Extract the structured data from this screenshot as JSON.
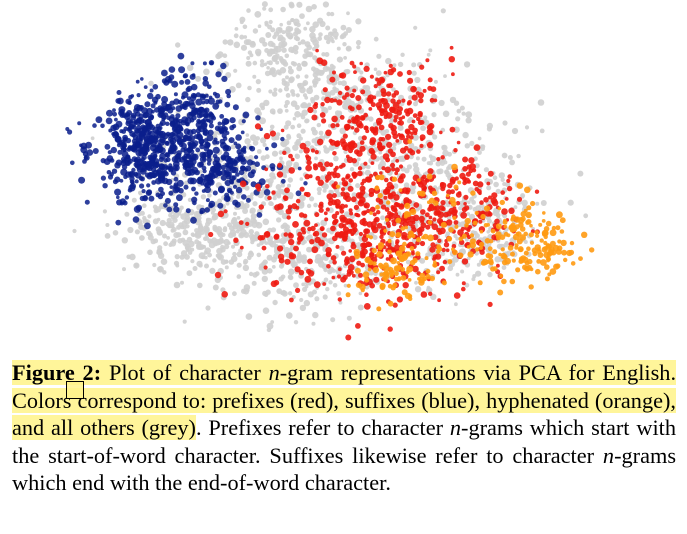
{
  "figure": {
    "label": "Figure 2:",
    "caption": {
      "p1": "Plot of character",
      "n": "n",
      "p2": "-gram representations via PCA for English. Colors correspond to: prefixes (red), suffixes (blue), hyphenated (orange), and all others (grey)",
      "p3": ". Prefixes refer to character",
      "p4": "-grams which start with the start-of-word character. Suffixes likewise refer to character",
      "p5": "-grams which end with the end-of-word character."
    }
  },
  "plot": {
    "type": "scatter",
    "colors": {
      "prefixes": "#ee1b12",
      "suffixes": "#0b1f8c",
      "hyphenated": "#ff9a12",
      "others": "#cfcfcf"
    }
  },
  "annotation": {
    "highlight_color": "#fff59a"
  }
}
